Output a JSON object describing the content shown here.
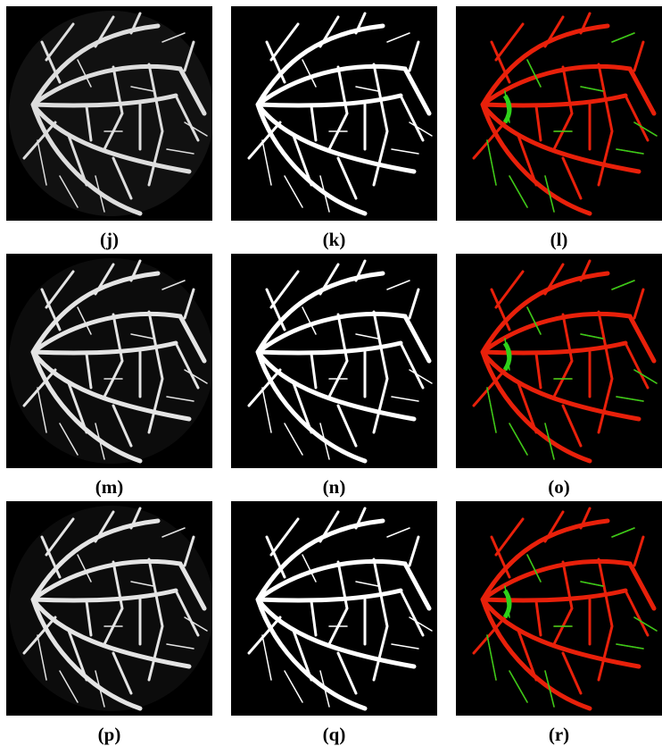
{
  "figure": {
    "rows": [
      [
        "(j)",
        "(k)",
        "(l)"
      ],
      [
        "(m)",
        "(n)",
        "(o)"
      ],
      [
        "(p)",
        "(q)",
        "(r)"
      ]
    ]
  }
}
